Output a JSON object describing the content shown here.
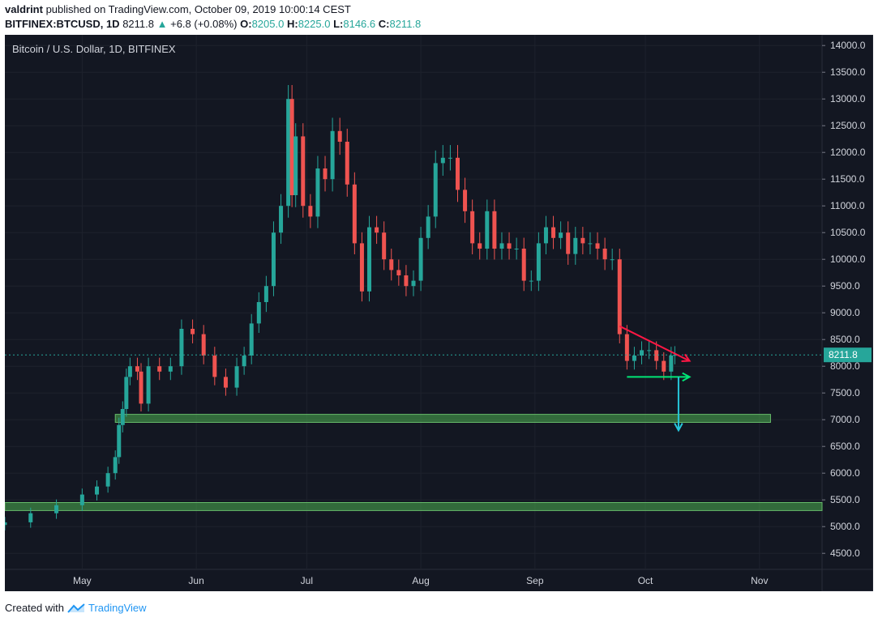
{
  "header": {
    "author": "valdrint",
    "published_text": " published on TradingView.com, October 09, 2019 10:00:14 CEST",
    "symbol": "BITFINEX:BTCUSD, 1D",
    "last": "8211.8",
    "change_icon": "triangle-up-icon",
    "change": "+6.8 (+0.08%)",
    "o_label": "O:",
    "o_value": "8205.0",
    "h_label": "H:",
    "h_value": "8225.0",
    "l_label": "L:",
    "l_value": "8146.6",
    "c_label": "C:",
    "c_value": "8211.8"
  },
  "footer": {
    "created_with": "Created with",
    "brand": "TradingView",
    "logo_icon": "tradingview-logo-icon"
  },
  "colors": {
    "background": "#131722",
    "up": "#26a69a",
    "down": "#ef5350",
    "zone": "#4caf50",
    "support_arrow": "#00e676",
    "trend_arrow": "#ff1744",
    "target_arrow": "#26c6da",
    "price_line": "#26a69a"
  },
  "chart_data": {
    "type": "candlestick",
    "title": "Bitcoin / U.S. Dollar, 1D, BITFINEX",
    "x_range": [
      "2019-04-10",
      "2019-11-18"
    ],
    "y_range": [
      4200,
      14200
    ],
    "yticks": [
      4500,
      5000,
      5500,
      6000,
      6500,
      7000,
      7500,
      8000,
      8500,
      9000,
      9500,
      10000,
      10500,
      11000,
      11500,
      12000,
      12500,
      13000,
      13500,
      14000
    ],
    "xticks": [
      {
        "label": "May",
        "date": "2019-05-01"
      },
      {
        "label": "Jun",
        "date": "2019-06-01"
      },
      {
        "label": "Jul",
        "date": "2019-07-01"
      },
      {
        "label": "Aug",
        "date": "2019-08-01"
      },
      {
        "label": "Sep",
        "date": "2019-09-01"
      },
      {
        "label": "Oct",
        "date": "2019-10-01"
      },
      {
        "label": "Nov",
        "date": "2019-11-01"
      }
    ],
    "last_price": 8211.8,
    "last_price_label": "8211.8",
    "closes": [
      [
        "2019-04-10",
        5080
      ],
      [
        "2019-04-17",
        5250
      ],
      [
        "2019-04-24",
        5400
      ],
      [
        "2019-05-01",
        5600
      ],
      [
        "2019-05-05",
        5750
      ],
      [
        "2019-05-08",
        6000
      ],
      [
        "2019-05-10",
        6300
      ],
      [
        "2019-05-11",
        6900
      ],
      [
        "2019-05-12",
        7200
      ],
      [
        "2019-05-13",
        7800
      ],
      [
        "2019-05-14",
        8000
      ],
      [
        "2019-05-16",
        7900
      ],
      [
        "2019-05-17",
        7300
      ],
      [
        "2019-05-19",
        8000
      ],
      [
        "2019-05-22",
        7900
      ],
      [
        "2019-05-25",
        8000
      ],
      [
        "2019-05-28",
        8700
      ],
      [
        "2019-05-31",
        8600
      ],
      [
        "2019-06-03",
        8200
      ],
      [
        "2019-06-06",
        7800
      ],
      [
        "2019-06-09",
        7600
      ],
      [
        "2019-06-12",
        8000
      ],
      [
        "2019-06-14",
        8200
      ],
      [
        "2019-06-16",
        8800
      ],
      [
        "2019-06-18",
        9200
      ],
      [
        "2019-06-20",
        9500
      ],
      [
        "2019-06-22",
        10500
      ],
      [
        "2019-06-24",
        11000
      ],
      [
        "2019-06-26",
        13000
      ],
      [
        "2019-06-27",
        11200
      ],
      [
        "2019-06-28",
        12300
      ],
      [
        "2019-06-30",
        11000
      ],
      [
        "2019-07-02",
        10800
      ],
      [
        "2019-07-04",
        11700
      ],
      [
        "2019-07-06",
        11500
      ],
      [
        "2019-07-08",
        12400
      ],
      [
        "2019-07-10",
        12200
      ],
      [
        "2019-07-12",
        11400
      ],
      [
        "2019-07-14",
        10300
      ],
      [
        "2019-07-16",
        9400
      ],
      [
        "2019-07-18",
        10600
      ],
      [
        "2019-07-20",
        10500
      ],
      [
        "2019-07-22",
        10000
      ],
      [
        "2019-07-24",
        9800
      ],
      [
        "2019-07-26",
        9700
      ],
      [
        "2019-07-28",
        9500
      ],
      [
        "2019-07-30",
        9600
      ],
      [
        "2019-08-01",
        10400
      ],
      [
        "2019-08-03",
        10800
      ],
      [
        "2019-08-05",
        11800
      ],
      [
        "2019-08-07",
        11900
      ],
      [
        "2019-08-09",
        11900
      ],
      [
        "2019-08-11",
        11300
      ],
      [
        "2019-08-13",
        10900
      ],
      [
        "2019-08-15",
        10300
      ],
      [
        "2019-08-17",
        10200
      ],
      [
        "2019-08-19",
        10900
      ],
      [
        "2019-08-21",
        10200
      ],
      [
        "2019-08-23",
        10300
      ],
      [
        "2019-08-25",
        10200
      ],
      [
        "2019-08-27",
        10200
      ],
      [
        "2019-08-29",
        9600
      ],
      [
        "2019-08-31",
        9600
      ],
      [
        "2019-09-02",
        10300
      ],
      [
        "2019-09-04",
        10600
      ],
      [
        "2019-09-06",
        10400
      ],
      [
        "2019-09-08",
        10500
      ],
      [
        "2019-09-10",
        10100
      ],
      [
        "2019-09-12",
        10400
      ],
      [
        "2019-09-14",
        10300
      ],
      [
        "2019-09-16",
        10300
      ],
      [
        "2019-09-18",
        10200
      ],
      [
        "2019-09-20",
        10000
      ],
      [
        "2019-09-22",
        10000
      ],
      [
        "2019-09-24",
        8600
      ],
      [
        "2019-09-26",
        8100
      ],
      [
        "2019-09-28",
        8200
      ],
      [
        "2019-09-30",
        8300
      ],
      [
        "2019-10-02",
        8300
      ],
      [
        "2019-10-04",
        8100
      ],
      [
        "2019-10-06",
        7900
      ],
      [
        "2019-10-08",
        8200
      ],
      [
        "2019-10-09",
        8211.8
      ]
    ],
    "annotations": [
      {
        "type": "zone",
        "from_date": "2019-05-10",
        "to_date": "2019-11-04",
        "low": 6950,
        "high": 7100,
        "label": ""
      },
      {
        "type": "zone",
        "from_date": "2019-04-10",
        "to_date": "2019-11-18",
        "low": 5300,
        "high": 5450,
        "label": ""
      },
      {
        "type": "line",
        "color": "down",
        "from": [
          "2019-09-24",
          8750
        ],
        "to": [
          "2019-10-13",
          8100
        ],
        "arrow": true
      },
      {
        "type": "line",
        "color": "up",
        "from": [
          "2019-09-26",
          7800
        ],
        "to": [
          "2019-10-13",
          7800
        ],
        "arrow": true
      },
      {
        "type": "line",
        "color": "target",
        "from": [
          "2019-10-10",
          7800
        ],
        "to": [
          "2019-10-10",
          6800
        ],
        "arrow": true
      }
    ]
  }
}
